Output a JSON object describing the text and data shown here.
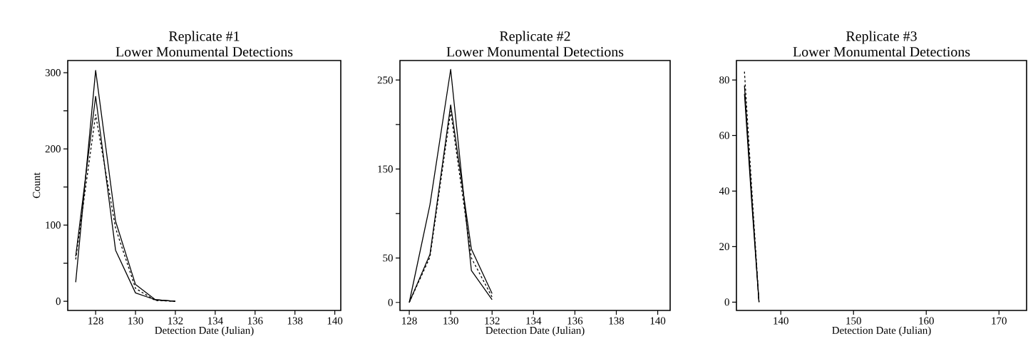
{
  "chart_data": [
    {
      "type": "line",
      "title": "Replicate #1",
      "subtitle": "Lower Monumental Detections",
      "xlabel": "Detection Date (Julian)",
      "ylabel": "Count",
      "x": [
        127,
        128,
        129,
        130,
        131,
        132
      ],
      "series": [
        {
          "color": "#000000",
          "line_style": "solid",
          "values": [
            25,
            303,
            105,
            22,
            2,
            0
          ]
        },
        {
          "color": "#000000",
          "line_style": "solid",
          "values": [
            59,
            269,
            67,
            11,
            2,
            0
          ]
        },
        {
          "color": "#000000",
          "line_style": "dashed",
          "values": [
            55,
            245,
            96,
            17,
            1,
            0
          ]
        }
      ],
      "xlim": [
        126.6,
        140.3
      ],
      "ylim": [
        -12,
        316
      ],
      "xticks": [
        128,
        130,
        132,
        134,
        136,
        138,
        140
      ],
      "yticks": [
        0,
        {
          "value": 50,
          "label": null
        },
        100,
        {
          "value": 150,
          "label": null
        },
        200,
        {
          "value": 250,
          "label": null
        },
        300
      ],
      "marker": "none"
    },
    {
      "type": "line",
      "title": "Replicate #2",
      "subtitle": "Lower Monumental Detections",
      "xlabel": "Detection Date (Julian)",
      "x": [
        128,
        129,
        130,
        131,
        132
      ],
      "series": [
        {
          "color": "#000000",
          "line_style": "solid",
          "values": [
            0,
            110,
            262,
            36,
            3
          ]
        },
        {
          "color": "#000000",
          "line_style": "solid",
          "values": [
            0,
            54,
            222,
            60,
            10
          ]
        },
        {
          "color": "#000000",
          "line_style": "dashed",
          "values": [
            0,
            51,
            215,
            50,
            6
          ]
        }
      ],
      "xlim": [
        127.55,
        140.6
      ],
      "ylim": [
        -9,
        272
      ],
      "xticks": [
        128,
        130,
        132,
        134,
        136,
        138,
        140
      ],
      "yticks": [
        0,
        50,
        {
          "value": 100,
          "label": null
        },
        150,
        {
          "value": 200,
          "label": null
        },
        250
      ],
      "marker": "none"
    },
    {
      "type": "line",
      "title": "Replicate #3",
      "subtitle": "Lower Monumental Detections",
      "xlabel": "Detection Date (Julian)",
      "x": [
        135,
        136,
        137
      ],
      "series": [
        {
          "color": "#000000",
          "line_style": "dashed",
          "values": [
            83,
            41,
            0
          ]
        },
        {
          "color": "#000000",
          "line_style": "solid",
          "values": [
            78,
            38,
            0
          ]
        },
        {
          "color": "#000000",
          "line_style": "solid",
          "values": [
            75,
            36,
            0
          ]
        }
      ],
      "xlim": [
        133.9,
        173.8
      ],
      "ylim": [
        -3,
        87
      ],
      "xticks": [
        140,
        150,
        160,
        170
      ],
      "yticks": [
        0,
        20,
        40,
        60,
        80
      ],
      "marker": "none"
    }
  ]
}
